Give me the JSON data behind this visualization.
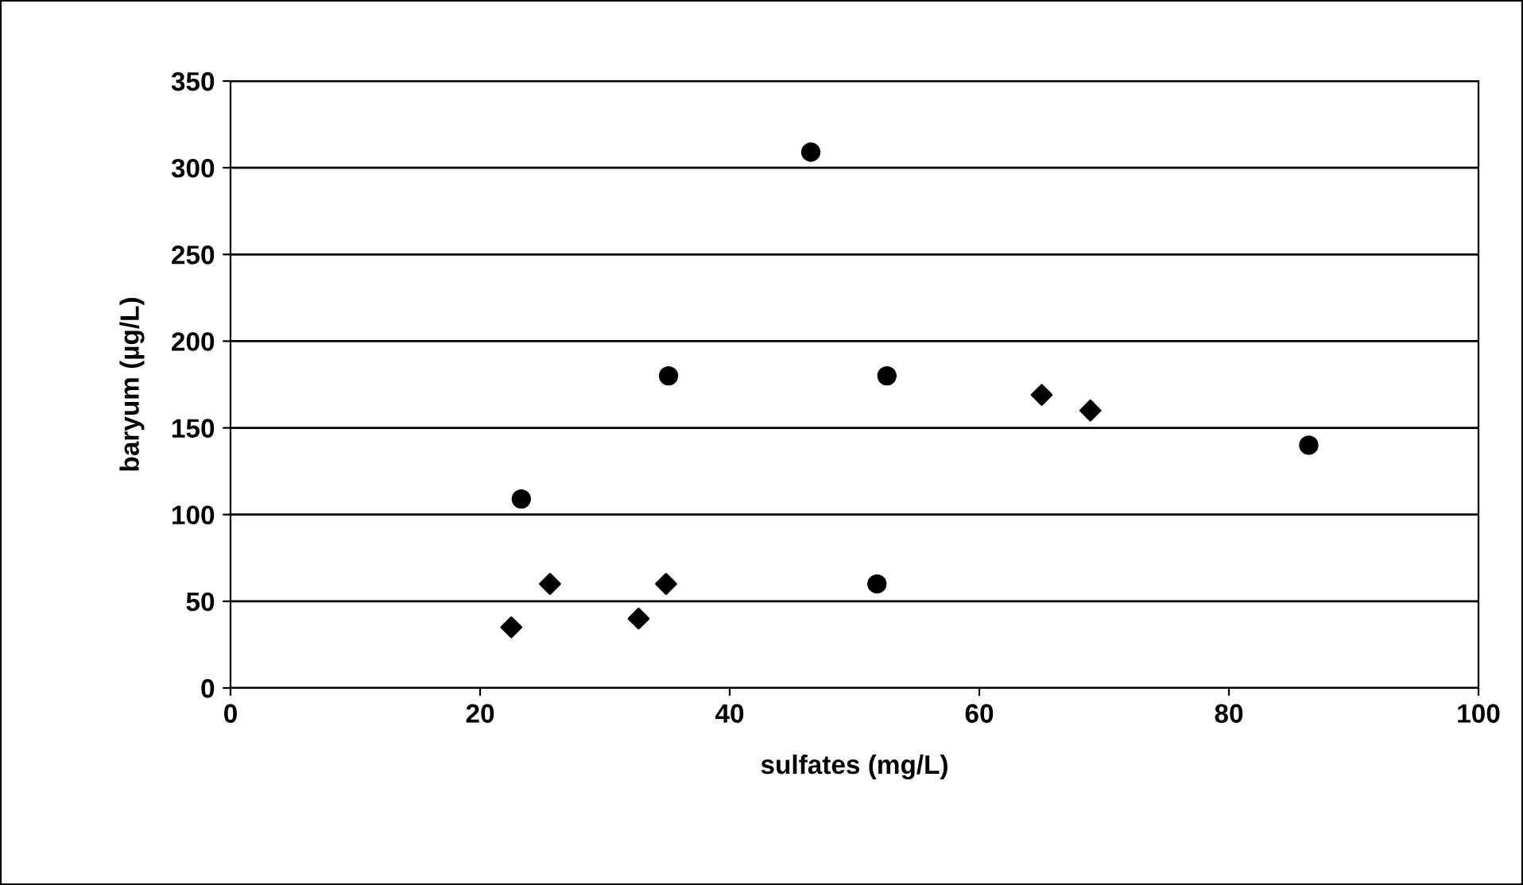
{
  "chart_data": {
    "type": "scatter",
    "xlabel": "sulfates (mg/L)",
    "ylabel": "baryum (µg/L)",
    "xlim": [
      0,
      100
    ],
    "xticks": [
      0,
      20,
      40,
      60,
      80,
      100
    ],
    "ylim": [
      0,
      350
    ],
    "yticks": [
      0,
      50,
      100,
      150,
      200,
      250,
      300,
      350
    ],
    "grid": "y",
    "legend": false,
    "series": [
      {
        "color": "#000000",
        "marker": "diamond",
        "x": [
          22.5,
          25.6,
          32.7,
          34.9,
          65.0,
          68.9
        ],
        "values": [
          35,
          60,
          40,
          60,
          169,
          160
        ]
      },
      {
        "color": "#000000",
        "marker": "circle",
        "x": [
          23.3,
          35.1,
          46.5,
          51.8,
          52.6,
          86.4
        ],
        "values": [
          109,
          180,
          309,
          60,
          180,
          140
        ]
      }
    ]
  }
}
